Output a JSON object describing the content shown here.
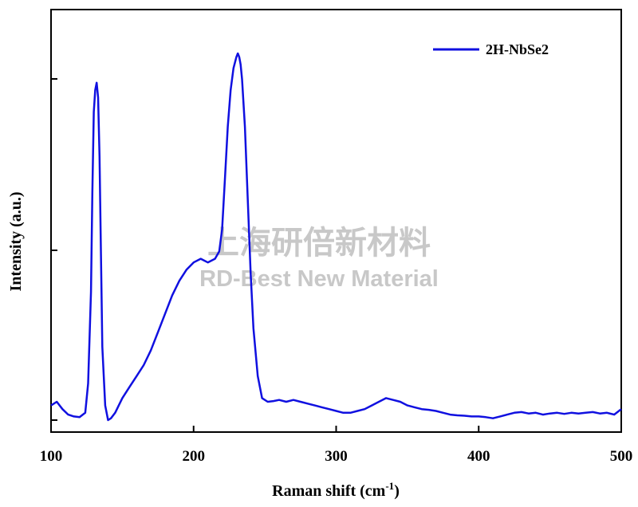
{
  "chart_data": {
    "type": "line",
    "xlabel": "Raman shift (cm",
    "xlabel_sup": "-1",
    "xlabel_end": ")",
    "ylabel": "Intensity (a.u.)",
    "xlim": [
      100,
      500
    ],
    "ylim": [
      0,
      1
    ],
    "x_ticks": [
      100,
      200,
      300,
      400,
      500
    ],
    "x_tick_labels": [
      "100",
      "200",
      "300",
      "400",
      "500"
    ],
    "y_ticks": [
      0.02,
      0.5,
      0.98
    ],
    "y_tick_labels_shown": false,
    "grid": false,
    "legend_position": "top-right",
    "series": [
      {
        "name": "2H-NbSe2",
        "color": "#1010e0",
        "x": [
          100,
          104,
          108,
          112,
          116,
          120,
          124,
          126,
          128,
          129,
          130,
          131,
          132,
          133,
          134,
          135,
          136,
          138,
          140,
          142,
          145,
          150,
          155,
          160,
          165,
          170,
          175,
          180,
          185,
          190,
          195,
          200,
          205,
          210,
          215,
          218,
          220,
          222,
          224,
          226,
          228,
          230,
          231,
          232,
          233,
          234,
          236,
          238,
          240,
          242,
          245,
          248,
          252,
          256,
          260,
          265,
          270,
          275,
          280,
          285,
          290,
          295,
          300,
          305,
          310,
          315,
          320,
          325,
          330,
          335,
          340,
          345,
          350,
          355,
          360,
          365,
          370,
          375,
          380,
          385,
          390,
          395,
          400,
          405,
          410,
          415,
          420,
          425,
          430,
          435,
          440,
          445,
          450,
          455,
          460,
          465,
          470,
          475,
          480,
          485,
          490,
          495,
          500
        ],
        "y": [
          0.04,
          0.05,
          0.03,
          0.015,
          0.01,
          0.008,
          0.02,
          0.1,
          0.35,
          0.62,
          0.84,
          0.9,
          0.92,
          0.88,
          0.72,
          0.45,
          0.2,
          0.04,
          0.0,
          0.005,
          0.02,
          0.06,
          0.09,
          0.12,
          0.15,
          0.19,
          0.24,
          0.29,
          0.34,
          0.38,
          0.41,
          0.43,
          0.44,
          0.43,
          0.44,
          0.46,
          0.52,
          0.66,
          0.8,
          0.9,
          0.96,
          0.99,
          1.0,
          0.99,
          0.97,
          0.93,
          0.8,
          0.6,
          0.4,
          0.25,
          0.12,
          0.06,
          0.05,
          0.052,
          0.055,
          0.05,
          0.055,
          0.05,
          0.045,
          0.04,
          0.035,
          0.03,
          0.025,
          0.02,
          0.02,
          0.025,
          0.03,
          0.04,
          0.05,
          0.06,
          0.055,
          0.05,
          0.04,
          0.035,
          0.03,
          0.028,
          0.025,
          0.02,
          0.015,
          0.013,
          0.012,
          0.01,
          0.01,
          0.008,
          0.005,
          0.01,
          0.015,
          0.02,
          0.022,
          0.018,
          0.02,
          0.015,
          0.018,
          0.02,
          0.017,
          0.02,
          0.018,
          0.02,
          0.022,
          0.018,
          0.02,
          0.015,
          0.03
        ]
      }
    ]
  },
  "watermark": {
    "line1": "上海研倍新材料",
    "line2": "RD-Best New Material"
  }
}
